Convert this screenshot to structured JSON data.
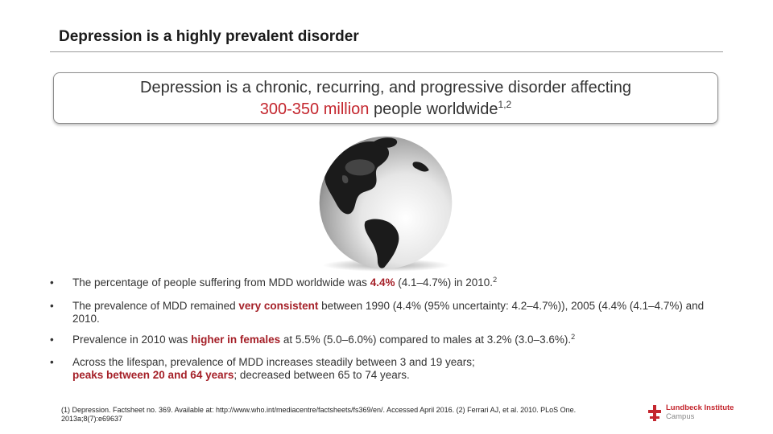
{
  "slide": {
    "title": "Depression is a highly prevalent disorder"
  },
  "callout": {
    "line1": "Depression is a chronic, recurring, and progressive disorder affecting",
    "line2_highlight": "300-350 million",
    "line2_rest": " people worldwide",
    "line2_sup": "1,2"
  },
  "globe": {
    "icon": "globe-icon"
  },
  "bullets": [
    {
      "bullet": "•",
      "text_a": "The percentage of people suffering from MDD worldwide was ",
      "em": "4.4%",
      "text_b": " (4.1–4.7%) in 2010.",
      "sup": "2"
    },
    {
      "bullet": "•",
      "text_a": "The prevalence of MDD remained ",
      "em": "very consistent",
      "text_b": " between 1990 (4.4% (95% uncertainty: 4.2–4.7%)), 2005 (4.4% (4.1–4.7%) and 2010."
    },
    {
      "bullet": "•",
      "text_a": "Prevalence in 2010 was ",
      "em": "higher in females",
      "text_b": " at 5.5% (5.0–6.0%) compared to males at 3.2% (3.0–3.6%).",
      "sup": "2"
    },
    {
      "bullet": "•",
      "text_a": "Across the lifespan, prevalence of MDD increases steadily between 3 and 19 years;",
      "em": "peaks between 20 and 64 years",
      "text_b": "; decreased between 65 to 74 years."
    }
  ],
  "footnote": {
    "text": "(1) Depression. Factsheet no. 369. Available at: http://www.who.int/mediacentre/factsheets/fs369/en/. Accessed April 2016. (2) Ferrari AJ, et al. 2010. PLoS One. 2013a;8(7):e69637"
  },
  "logo": {
    "line1": "Lundbeck Institute",
    "line2": "Campus",
    "icon": "lundbeck-logo-icon",
    "brand_color": "#c4262e"
  },
  "colors": {
    "accent": "#c4262e",
    "emphasis": "#a52028",
    "text": "#333333"
  }
}
